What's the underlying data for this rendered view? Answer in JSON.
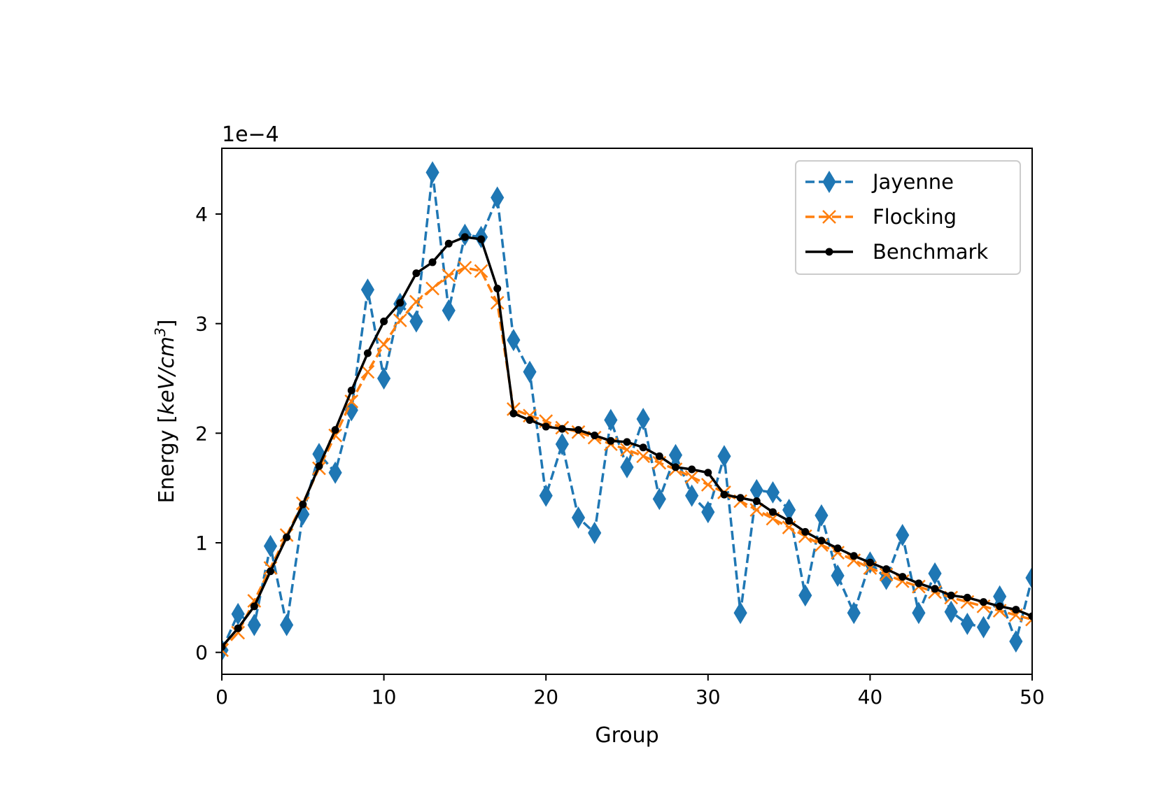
{
  "chart_data": {
    "type": "line",
    "xlabel": "Group",
    "ylabel": "Energy [keV/cm³]",
    "ylabel_parts": {
      "prefix": "Energy [",
      "unit": "keV/cm",
      "exponent": "3",
      "suffix": "]"
    },
    "offset_text": "1e−4",
    "xlim": [
      0,
      50
    ],
    "ylim": [
      -0.2,
      4.6
    ],
    "xticks": [
      0,
      10,
      20,
      30,
      40,
      50
    ],
    "xtick_labels": [
      "0",
      "10",
      "20",
      "30",
      "40",
      "50"
    ],
    "yticks": [
      0,
      1,
      2,
      3,
      4
    ],
    "ytick_labels": [
      "0",
      "1",
      "2",
      "3",
      "4"
    ],
    "grid": false,
    "legend_position": "top-right",
    "x": [
      0,
      1,
      2,
      3,
      4,
      5,
      6,
      7,
      8,
      9,
      10,
      11,
      12,
      13,
      14,
      15,
      16,
      17,
      18,
      19,
      20,
      21,
      22,
      23,
      24,
      25,
      26,
      27,
      28,
      29,
      30,
      31,
      32,
      33,
      34,
      35,
      36,
      37,
      38,
      39,
      40,
      41,
      42,
      43,
      44,
      45,
      46,
      47,
      48,
      49,
      50
    ],
    "series": [
      {
        "name": "Jayenne",
        "color": "#1f77b4",
        "linestyle": "dashed",
        "marker": "diamond",
        "values": [
          0.02,
          0.35,
          0.25,
          0.97,
          0.25,
          1.26,
          1.81,
          1.64,
          2.21,
          3.31,
          2.5,
          3.18,
          3.02,
          4.38,
          3.12,
          3.81,
          3.79,
          4.15,
          2.85,
          2.56,
          1.43,
          1.9,
          1.23,
          1.09,
          2.12,
          1.69,
          2.13,
          1.4,
          1.8,
          1.43,
          1.28,
          1.79,
          0.36,
          1.48,
          1.46,
          1.3,
          0.52,
          1.25,
          0.7,
          0.36,
          0.82,
          0.67,
          1.07,
          0.36,
          0.72,
          0.37,
          0.26,
          0.23,
          0.51,
          0.1,
          0.68
        ]
      },
      {
        "name": "Flocking",
        "color": "#ff7f0e",
        "linestyle": "dashed",
        "marker": "x",
        "values": [
          0.02,
          0.18,
          0.47,
          0.77,
          1.07,
          1.36,
          1.68,
          1.98,
          2.29,
          2.56,
          2.81,
          3.03,
          3.2,
          3.32,
          3.44,
          3.51,
          3.48,
          3.19,
          2.22,
          2.16,
          2.11,
          2.05,
          2.01,
          1.96,
          1.9,
          1.85,
          1.79,
          1.73,
          1.67,
          1.6,
          1.53,
          1.46,
          1.38,
          1.3,
          1.22,
          1.14,
          1.06,
          0.98,
          0.91,
          0.84,
          0.77,
          0.71,
          0.65,
          0.6,
          0.55,
          0.5,
          0.46,
          0.42,
          0.38,
          0.34,
          0.3
        ]
      },
      {
        "name": "Benchmark",
        "color": "#000000",
        "linestyle": "solid",
        "marker": "point",
        "values": [
          0.05,
          0.22,
          0.42,
          0.74,
          1.05,
          1.35,
          1.7,
          2.03,
          2.39,
          2.73,
          3.02,
          3.19,
          3.46,
          3.56,
          3.73,
          3.79,
          3.77,
          3.32,
          2.18,
          2.12,
          2.06,
          2.04,
          2.03,
          1.98,
          1.93,
          1.92,
          1.87,
          1.79,
          1.69,
          1.67,
          1.64,
          1.44,
          1.41,
          1.38,
          1.28,
          1.2,
          1.1,
          1.02,
          0.95,
          0.88,
          0.82,
          0.76,
          0.69,
          0.63,
          0.58,
          0.52,
          0.5,
          0.46,
          0.42,
          0.39,
          0.33
        ]
      }
    ]
  }
}
